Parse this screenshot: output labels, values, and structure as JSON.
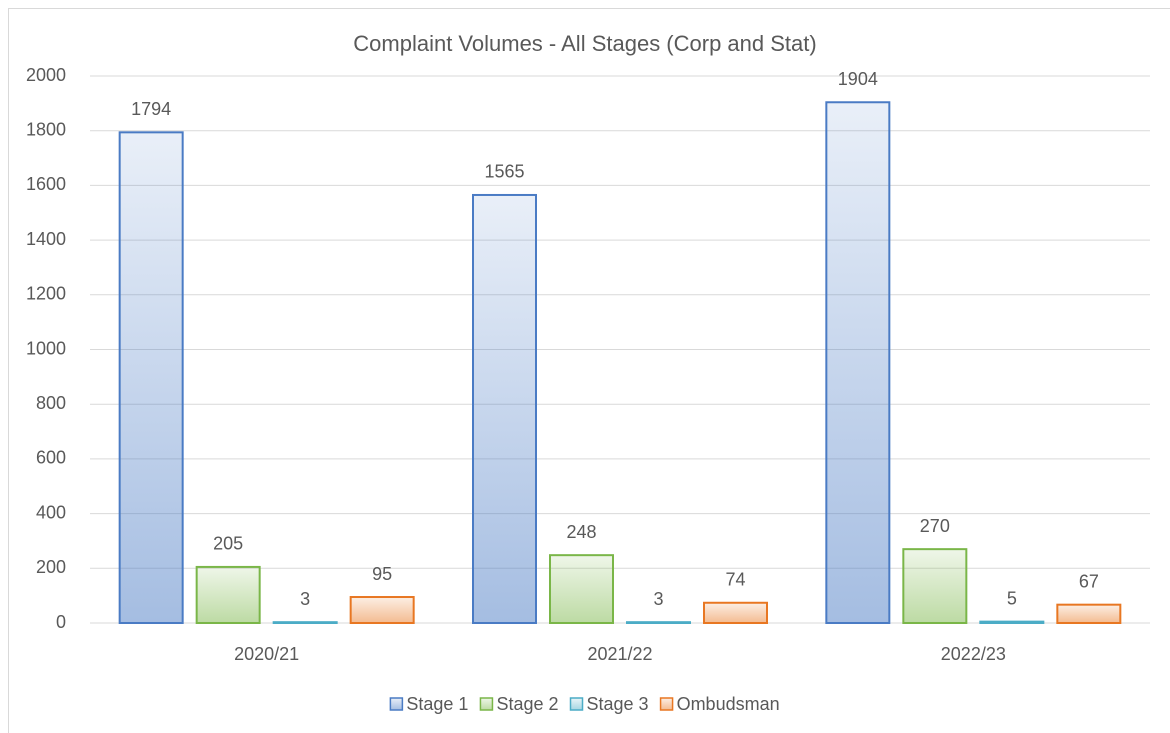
{
  "chart_data": {
    "type": "bar",
    "title": "Complaint Volumes - All Stages (Corp and Stat)",
    "categories": [
      "2020/21",
      "2021/22",
      "2022/23"
    ],
    "series": [
      {
        "name": "Stage 1",
        "color": "#4a7bc4",
        "values": [
          1794,
          1565,
          1904
        ]
      },
      {
        "name": "Stage 2",
        "color": "#7ab648",
        "values": [
          205,
          248,
          270
        ]
      },
      {
        "name": "Stage 3",
        "color": "#4bacc6",
        "values": [
          3,
          3,
          5
        ]
      },
      {
        "name": "Ombudsman",
        "color": "#e87722",
        "values": [
          95,
          74,
          67
        ]
      }
    ],
    "ylim": [
      0,
      2000
    ],
    "yticks": [
      0,
      200,
      400,
      600,
      800,
      1000,
      1200,
      1400,
      1600,
      1800,
      2000
    ],
    "grid": true,
    "legend": "bottom"
  }
}
